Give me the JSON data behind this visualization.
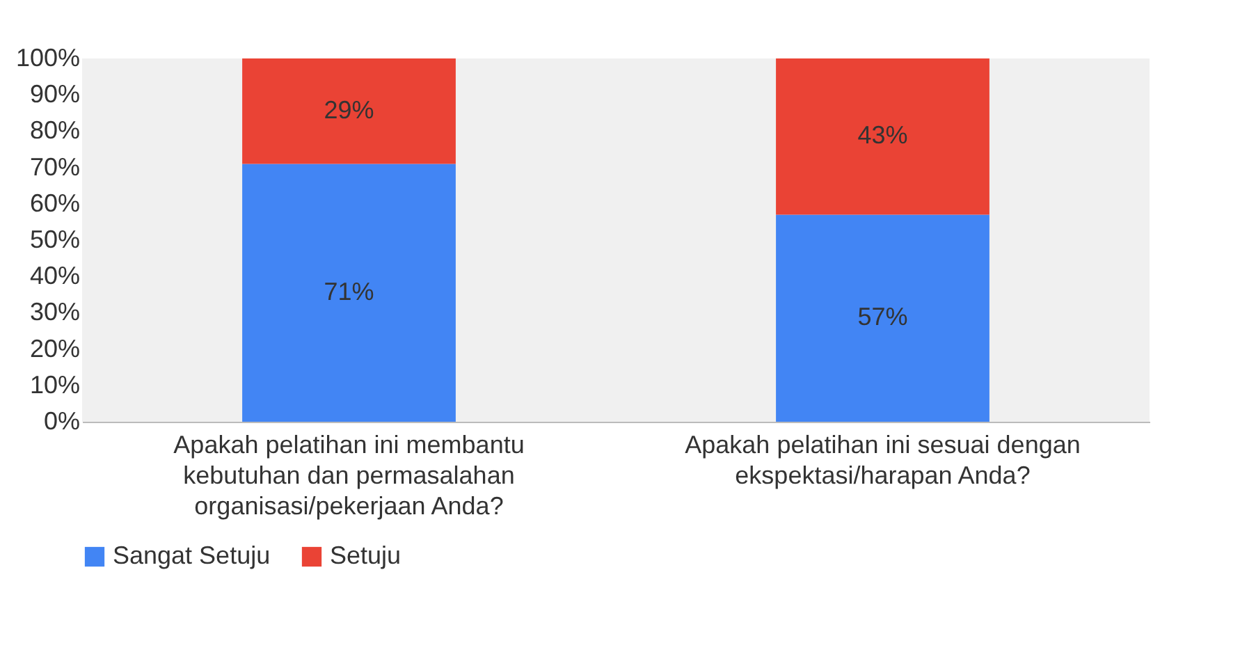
{
  "chart_data": {
    "type": "bar",
    "stacked": true,
    "categories": [
      "Apakah pelatihan ini membantu kebutuhan dan permasalahan organisasi/pekerjaan Anda?",
      "Apakah pelatihan ini sesuai dengan ekspektasi/harapan Anda?"
    ],
    "series": [
      {
        "name": "Sangat Setuju",
        "color": "#4285f4",
        "values": [
          71,
          57
        ],
        "value_labels": [
          "71%",
          "57%"
        ]
      },
      {
        "name": "Setuju",
        "color": "#ea4335",
        "values": [
          29,
          43
        ],
        "value_labels": [
          "29%",
          "43%"
        ]
      }
    ],
    "ylim": [
      0,
      100
    ],
    "yticks": [
      {
        "value": 0,
        "label": "0%"
      },
      {
        "value": 10,
        "label": "10%"
      },
      {
        "value": 20,
        "label": "20%"
      },
      {
        "value": 30,
        "label": "30%"
      },
      {
        "value": 40,
        "label": "40%"
      },
      {
        "value": 50,
        "label": "50%"
      },
      {
        "value": 60,
        "label": "60%"
      },
      {
        "value": 70,
        "label": "70%"
      },
      {
        "value": 80,
        "label": "80%"
      },
      {
        "value": 90,
        "label": "90%"
      },
      {
        "value": 100,
        "label": "100%"
      }
    ],
    "grid": false,
    "legend": "bottom"
  }
}
